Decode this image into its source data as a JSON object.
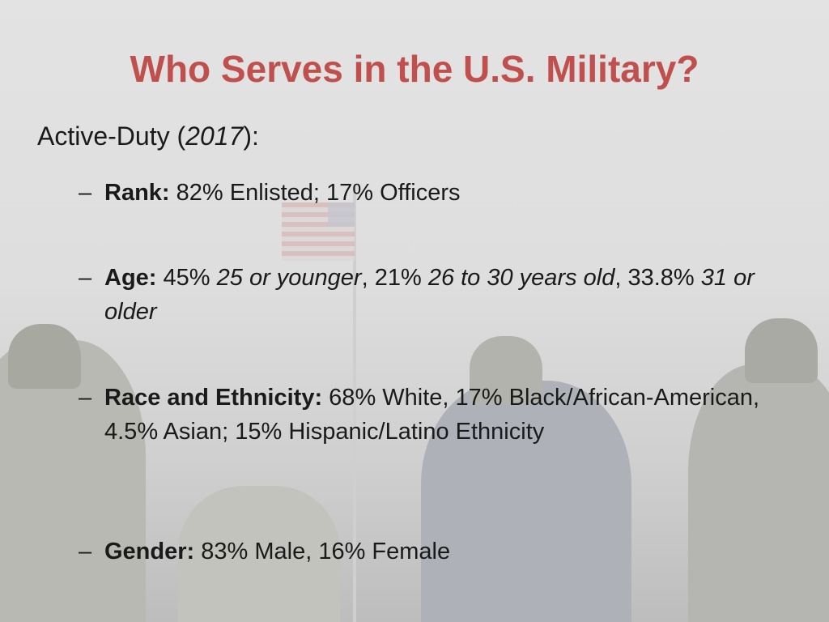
{
  "slide": {
    "title": "Who Serves in the U.S. Military?",
    "intro": {
      "prefix": "Active-Duty (",
      "year": "2017",
      "suffix": "):"
    },
    "bullet_dash": "–",
    "items": [
      {
        "label": "Rank:",
        "text": " 82% Enlisted; 17% Officers"
      },
      {
        "label": "Age:",
        "p1": " 45% ",
        "i1": "25 or younger",
        "p2": ", 21% ",
        "i2": "26 to 30 years old",
        "p3": ", 33.8% ",
        "i3": "31 or older"
      },
      {
        "label": "Race and Ethnicity:",
        "text": " 68% White, 17% Black/African-American, 4.5% Asian; 15% Hispanic/Latino Ethnicity"
      },
      {
        "label": "Gender:",
        "text": " 83% Male, 16% Female"
      }
    ]
  },
  "colors": {
    "title": "#c0504d",
    "text": "#1a1a1a",
    "background": "#e0e0e0"
  },
  "background_image": "faded-photo-of-saluting-soldiers-and-flag"
}
